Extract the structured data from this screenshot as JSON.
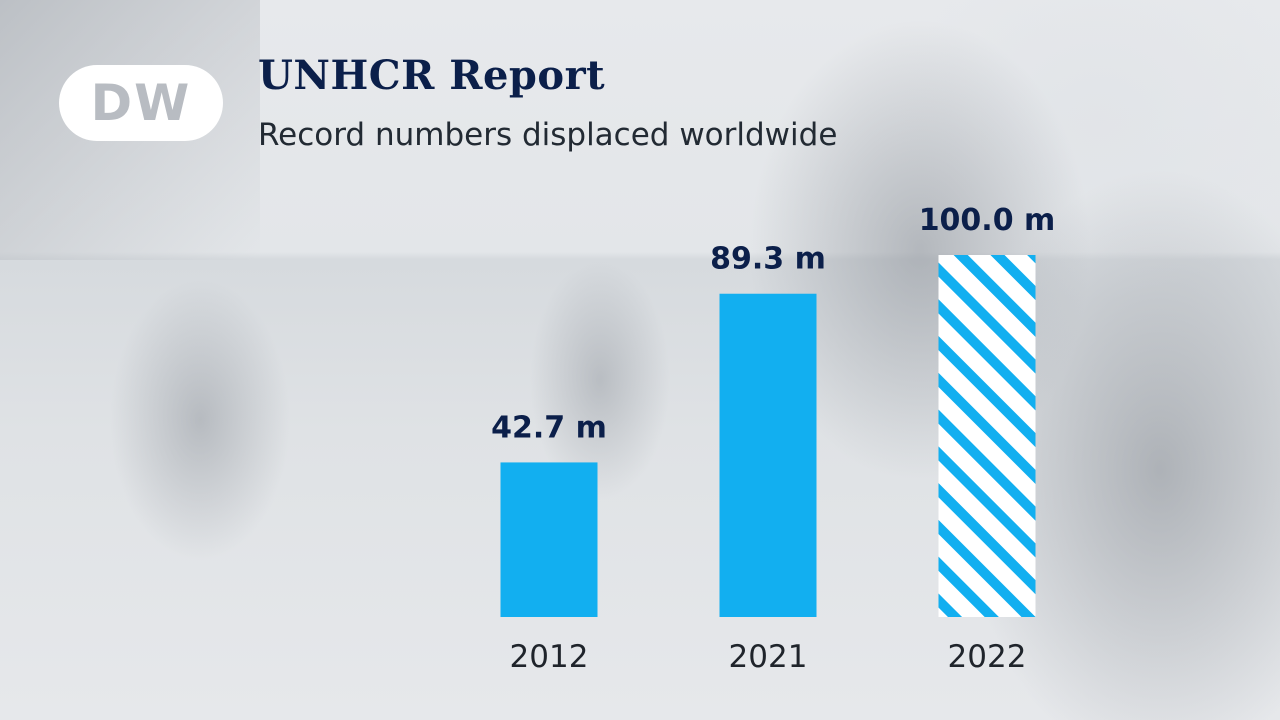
{
  "header": {
    "logo_text": "DW",
    "title": "UNHCR Report",
    "subtitle": "Record numbers displaced worldwide"
  },
  "colors": {
    "bar": "#12aff0",
    "title": "#0b1f4a",
    "text": "#1f242b"
  },
  "chart_data": {
    "type": "bar",
    "title": "UNHCR Report",
    "subtitle": "Record numbers displaced worldwide",
    "categories": [
      "2012",
      "2021",
      "2022"
    ],
    "values": [
      42.7,
      89.3,
      100.0
    ],
    "value_labels": [
      "42.7 m",
      "89.3 m",
      "100.0 m"
    ],
    "patterns": [
      "solid",
      "solid",
      "hatched"
    ],
    "unit": "m",
    "ylim": [
      0,
      110
    ],
    "grid": false,
    "legend": "none"
  }
}
